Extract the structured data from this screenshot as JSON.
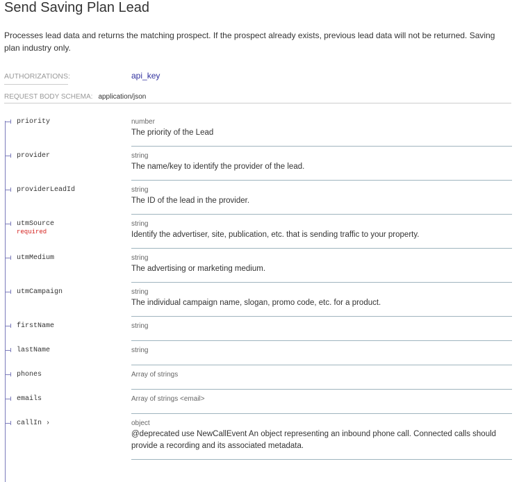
{
  "title": "Send Saving Plan Lead",
  "description": "Processes lead data and returns the matching prospect. If the prospect already exists, previous lead data will not be returned. Saving plan industry only.",
  "authorizations": {
    "label": "AUTHORIZATIONS:",
    "value": "api_key"
  },
  "schema": {
    "label": "REQUEST BODY SCHEMA:",
    "value": "application/json"
  },
  "fields": [
    {
      "name": "priority",
      "type": "number",
      "description": "The priority of the Lead"
    },
    {
      "name": "provider",
      "type": "string",
      "description": "The name/key to identify the provider of the lead."
    },
    {
      "name": "providerLeadId",
      "type": "string",
      "description": "The ID of the lead in the provider."
    },
    {
      "name": "utmSource",
      "required": "required",
      "type": "string",
      "description": "Identify the advertiser, site, publication, etc. that is sending traffic to your property."
    },
    {
      "name": "utmMedium",
      "type": "string",
      "description": "The advertising or marketing medium."
    },
    {
      "name": "utmCampaign",
      "type": "string",
      "description": "The individual campaign name, slogan, promo code, etc. for a product."
    },
    {
      "name": "firstName",
      "type": "string"
    },
    {
      "name": "lastName",
      "type": "string"
    },
    {
      "name": "phones",
      "type": "Array of strings"
    },
    {
      "name": "emails",
      "type": "Array of strings <email>"
    },
    {
      "name": "callIn ›",
      "type": "object",
      "description": "@deprecated use NewCallEvent An object representing an inbound phone call. Connected calls should provide a recording and its associated metadata."
    }
  ]
}
